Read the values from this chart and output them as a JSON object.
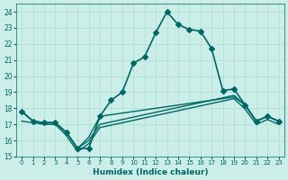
{
  "xlabel": "Humidex (Indice chaleur)",
  "ylabel": "",
  "bg_color": "#cceee8",
  "grid_color": "#aaddcc",
  "line_color": "#006666",
  "xlim": [
    -0.5,
    23.5
  ],
  "ylim": [
    15,
    24.5
  ],
  "yticks": [
    15,
    16,
    17,
    18,
    19,
    20,
    21,
    22,
    23,
    24
  ],
  "xticks": [
    0,
    1,
    2,
    3,
    4,
    5,
    6,
    7,
    8,
    9,
    10,
    11,
    12,
    13,
    14,
    15,
    16,
    17,
    18,
    19,
    20,
    21,
    22,
    23
  ],
  "series": [
    {
      "x": [
        0,
        1,
        2,
        3,
        4,
        5,
        6,
        7,
        8,
        9,
        10,
        11,
        12,
        13,
        14,
        15,
        16,
        17,
        18,
        19,
        20,
        21,
        22,
        23
      ],
      "y": [
        17.8,
        17.2,
        17.1,
        17.1,
        16.5,
        15.5,
        15.5,
        17.5,
        18.5,
        19.0,
        20.8,
        21.2,
        22.7,
        24.0,
        23.2,
        22.9,
        22.8,
        21.7,
        19.1,
        19.2,
        18.2,
        17.2,
        17.5,
        17.2
      ],
      "marker": "D",
      "markersize": 3,
      "linewidth": 1.2
    },
    {
      "x": [
        0,
        1,
        2,
        3,
        4,
        5,
        6,
        7,
        8,
        9,
        10,
        11,
        12,
        13,
        14,
        15,
        16,
        17,
        18,
        19,
        20,
        21,
        22,
        23
      ],
      "y": [
        17.8,
        17.2,
        17.1,
        17.1,
        16.5,
        15.5,
        16.2,
        17.5,
        17.6,
        17.7,
        17.8,
        17.9,
        18.0,
        18.1,
        18.2,
        18.3,
        18.4,
        18.5,
        18.6,
        18.7,
        18.2,
        17.2,
        17.5,
        17.2
      ],
      "marker": null,
      "markersize": 0,
      "linewidth": 1.0
    },
    {
      "x": [
        0,
        1,
        2,
        3,
        4,
        5,
        6,
        7,
        8,
        9,
        10,
        11,
        12,
        13,
        14,
        15,
        16,
        17,
        18,
        19,
        20,
        21,
        22,
        23
      ],
      "y": [
        17.8,
        17.2,
        17.1,
        17.1,
        16.5,
        15.5,
        16.0,
        17.0,
        17.15,
        17.3,
        17.45,
        17.6,
        17.75,
        17.9,
        18.05,
        18.2,
        18.35,
        18.5,
        18.65,
        18.8,
        18.2,
        17.2,
        17.5,
        17.2
      ],
      "marker": null,
      "markersize": 0,
      "linewidth": 1.0
    },
    {
      "x": [
        0,
        1,
        2,
        3,
        4,
        5,
        6,
        7,
        8,
        9,
        10,
        11,
        12,
        13,
        14,
        15,
        16,
        17,
        18,
        19,
        20,
        21,
        22,
        23
      ],
      "y": [
        17.2,
        17.1,
        17.0,
        17.0,
        16.3,
        15.3,
        15.8,
        16.8,
        16.95,
        17.1,
        17.25,
        17.4,
        17.55,
        17.7,
        17.85,
        18.0,
        18.15,
        18.3,
        18.45,
        18.6,
        17.95,
        17.0,
        17.3,
        17.0
      ],
      "marker": null,
      "markersize": 0,
      "linewidth": 1.0
    }
  ]
}
